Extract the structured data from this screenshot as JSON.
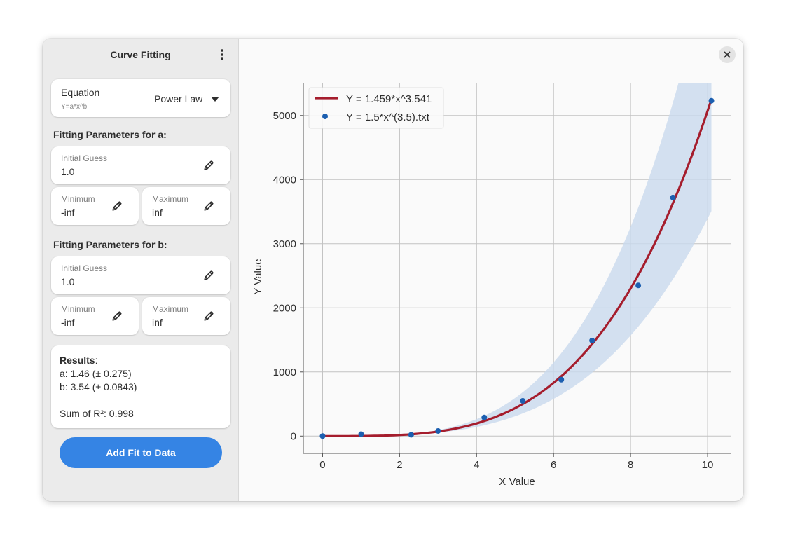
{
  "sidebar": {
    "title": "Curve Fitting",
    "equation": {
      "label": "Equation",
      "formula": "Y=a*x^b",
      "selected": "Power Law"
    },
    "params": [
      {
        "heading": "Fitting Parameters for a:",
        "initial_label": "Initial Guess",
        "initial_value": "1.0",
        "min_label": "Minimum",
        "min_value": "-inf",
        "max_label": "Maximum",
        "max_value": "inf"
      },
      {
        "heading": "Fitting Parameters for b:",
        "initial_label": "Initial Guess",
        "initial_value": "1.0",
        "min_label": "Minimum",
        "min_value": "-inf",
        "max_label": "Maximum",
        "max_value": "inf"
      }
    ],
    "results": {
      "heading": "Results",
      "a": "a: 1.46 (± 0.275)",
      "b": "b: 3.54 (± 0.0843)",
      "r2": "Sum of R²: 0.998"
    },
    "add_button": "Add Fit to Data"
  },
  "colors": {
    "accent": "#3584e4",
    "fit_line": "#a51d2d",
    "data_points": "#1c5fb0",
    "confidence_band": "#c9daed"
  },
  "icons": [
    "view-more-icon",
    "pan-down-icon",
    "edit-icon",
    "close-icon"
  ],
  "chart_data": {
    "type": "scatter",
    "xlabel": "X Value",
    "ylabel": "Y Value",
    "xlim": [
      -0.5,
      10.6
    ],
    "ylim": [
      -270,
      5500
    ],
    "xticks": [
      0,
      2,
      4,
      6,
      8,
      10
    ],
    "yticks": [
      0,
      1000,
      2000,
      3000,
      4000,
      5000
    ],
    "grid": true,
    "legend_position": "top-left",
    "series": [
      {
        "name": "Y = 1.459*x^3.541",
        "kind": "line",
        "equation": {
          "a": 1.459,
          "b": 3.541
        },
        "x_range": [
          0,
          10.1
        ]
      },
      {
        "name": "Y = 1.5*x^(3.5).txt",
        "kind": "scatter",
        "x": [
          0,
          1.0,
          2.3,
          3.0,
          4.2,
          5.2,
          6.2,
          7.0,
          8.2,
          9.1,
          10.1
        ],
        "y": [
          0,
          30,
          20,
          80,
          290,
          550,
          880,
          1490,
          2350,
          3720,
          5230
        ]
      }
    ],
    "confidence_band": {
      "upper": {
        "a": 1.735,
        "b": 3.6253
      },
      "lower": {
        "a": 1.184,
        "b": 3.4567
      }
    }
  }
}
